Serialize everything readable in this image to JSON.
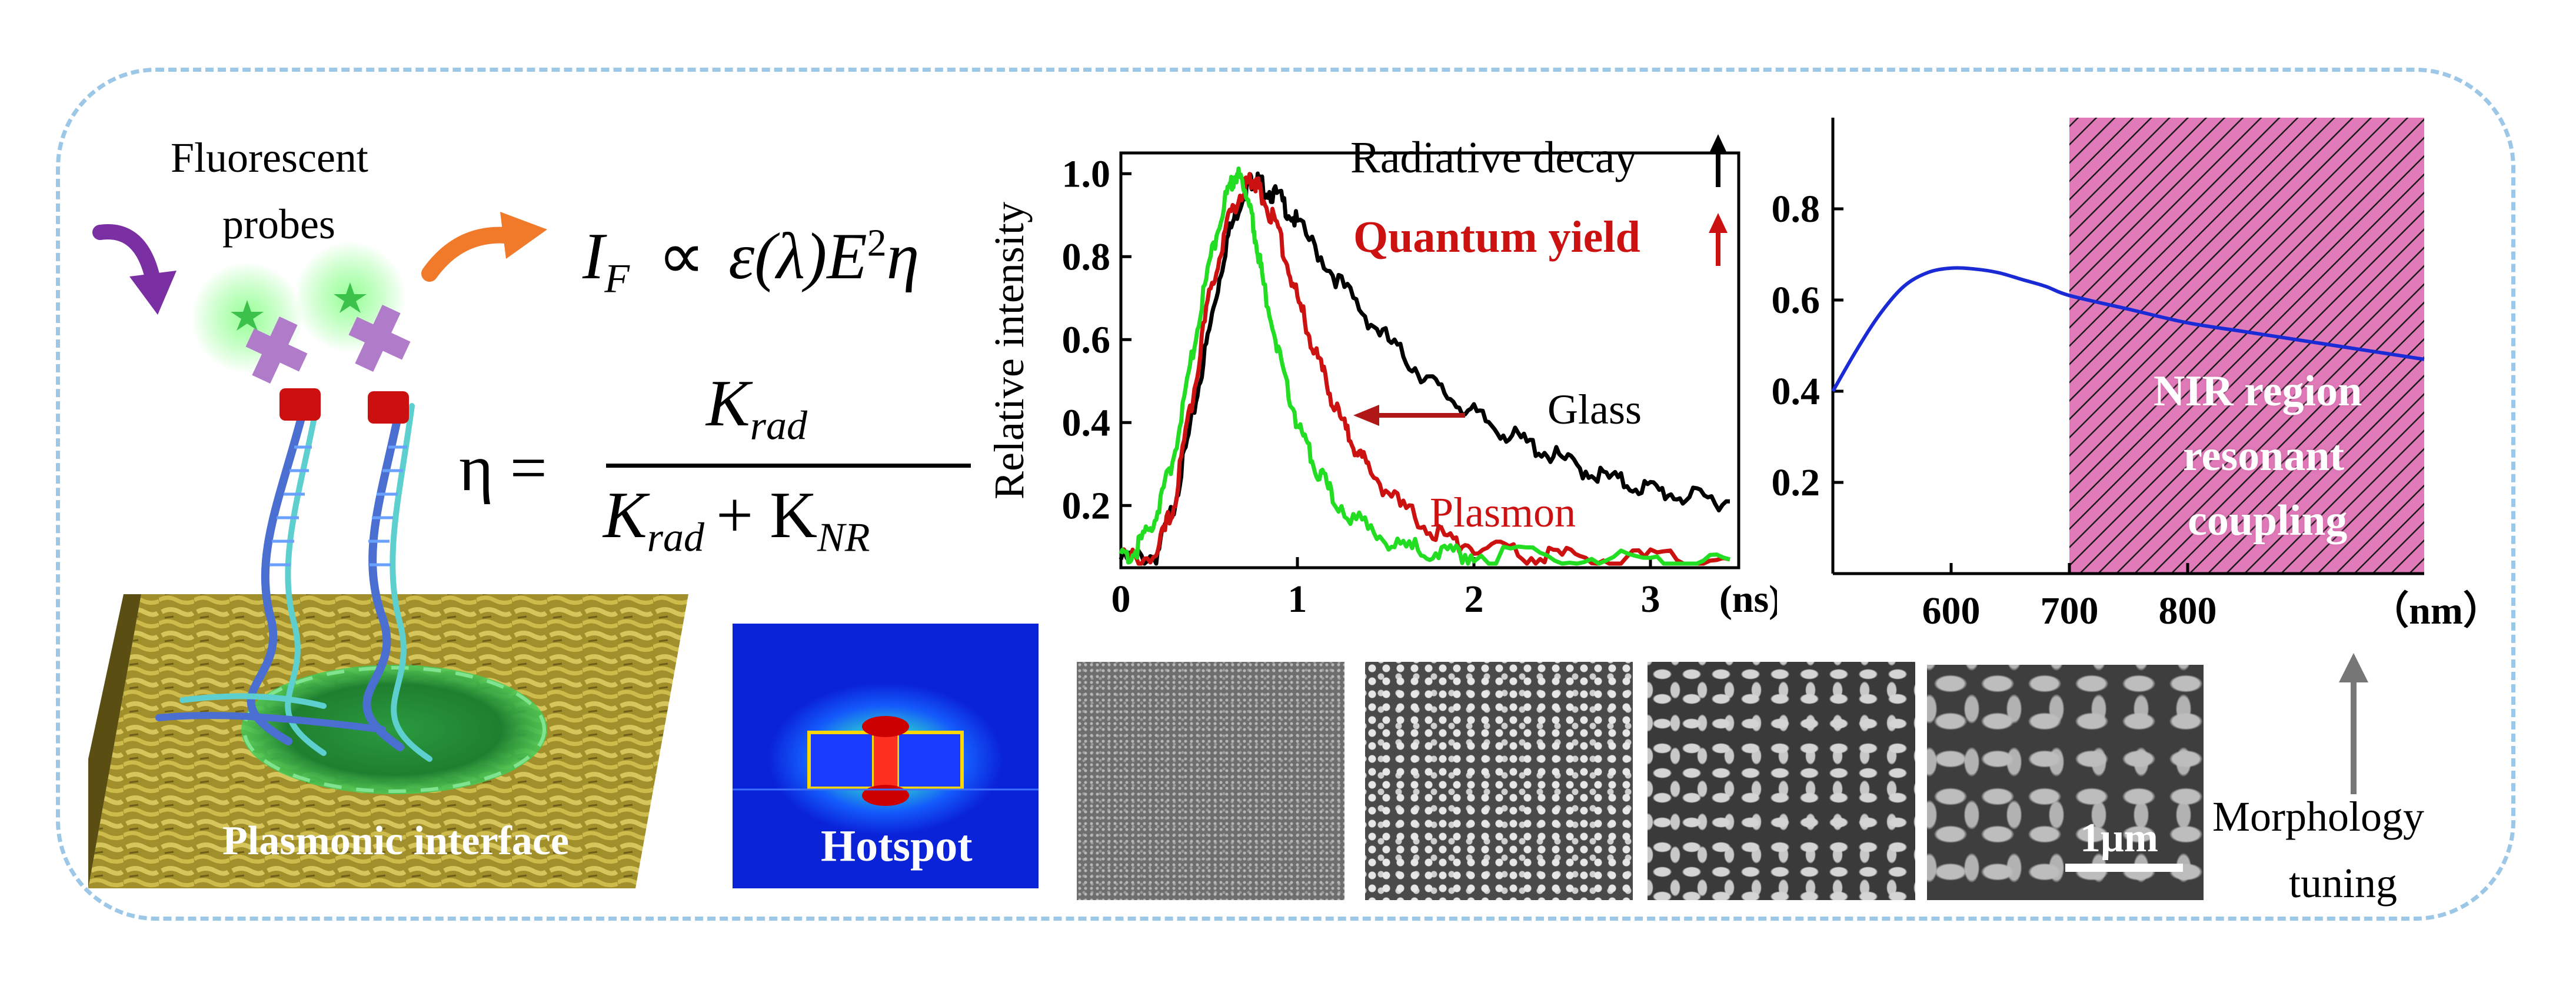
{
  "probe_label_line1": "Fluorescent",
  "probe_label_line2": "probes",
  "plasmonic_label": "Plasmonic interface",
  "hotspot_label": "Hotspot",
  "equation_if": {
    "var": "I",
    "sub": "F",
    "rel": "∝",
    "rhs_a": "ε(λ)E",
    "rhs_sup": "2",
    "rhs_b": "η"
  },
  "equation_eta": {
    "lhs": "η =",
    "num": "K",
    "num_sub": "rad",
    "den_a": "K",
    "den_a_sub": "rad",
    "den_plus": "+ K",
    "den_b_sub": "NR"
  },
  "decay_annotations": {
    "radiative": "Radiative decay",
    "quantum": "Quantum yield",
    "glass": "Glass",
    "plasmon": "Plasmon"
  },
  "spectrum_annotations": {
    "nir_line1": "NIR region",
    "nir_line2": "resonant",
    "nir_line3": "coupling"
  },
  "morphology_line1": "Morphology",
  "morphology_line2": "tuning",
  "scale_bar_label": "1μm",
  "colors": {
    "glass": "#000000",
    "plasmon": "#cc1111",
    "green": "#22dd22",
    "spectrum": "#1a2bd6",
    "nir_fill": "#e07ab8",
    "arrow_red": "#b01818",
    "frame": "#9cc7e6"
  },
  "chart_data": [
    {
      "type": "line",
      "title": "",
      "xlabel": "",
      "ylabel": "Relative intensity",
      "x_unit_label": "(ns)",
      "xlim": [
        0,
        3.5
      ],
      "ylim": [
        0.05,
        1.05
      ],
      "x_ticks": [
        "0",
        "1",
        "2",
        "3"
      ],
      "y_ticks": [
        "0.2",
        "0.4",
        "0.6",
        "0.8",
        "1.0"
      ],
      "x_tick_values": [
        0,
        1,
        2,
        3
      ],
      "y_tick_values": [
        0.2,
        0.4,
        0.6,
        0.8,
        1.0
      ],
      "series": [
        {
          "name": "Glass",
          "color": "#000000",
          "x": [
            0,
            0.2,
            0.3,
            0.4,
            0.5,
            0.6,
            0.7,
            0.75,
            0.8,
            0.9,
            1.0,
            1.2,
            1.4,
            1.6,
            1.8,
            2.0,
            2.2,
            2.4,
            2.6,
            2.8,
            3.0,
            3.2,
            3.45
          ],
          "y": [
            0.07,
            0.08,
            0.2,
            0.4,
            0.62,
            0.84,
            0.96,
            0.99,
            0.97,
            0.94,
            0.88,
            0.76,
            0.65,
            0.56,
            0.48,
            0.42,
            0.37,
            0.33,
            0.29,
            0.26,
            0.24,
            0.22,
            0.21
          ]
        },
        {
          "name": "Plasmon",
          "color": "#cc1111",
          "x": [
            0,
            0.2,
            0.3,
            0.4,
            0.5,
            0.6,
            0.7,
            0.75,
            0.8,
            0.9,
            1.0,
            1.1,
            1.2,
            1.3,
            1.4,
            1.6,
            1.8,
            2.0,
            2.3,
            2.6,
            3.0,
            3.45
          ],
          "y": [
            0.07,
            0.08,
            0.2,
            0.45,
            0.7,
            0.88,
            0.97,
            0.99,
            0.95,
            0.85,
            0.7,
            0.57,
            0.45,
            0.36,
            0.29,
            0.19,
            0.13,
            0.1,
            0.08,
            0.075,
            0.07,
            0.07
          ]
        },
        {
          "name": "",
          "color": "#22dd22",
          "x": [
            0,
            0.1,
            0.2,
            0.3,
            0.4,
            0.5,
            0.6,
            0.65,
            0.7,
            0.75,
            0.8,
            0.9,
            1.0,
            1.1,
            1.2,
            1.4,
            1.6,
            1.8,
            2.0,
            2.5,
            3.0,
            3.45
          ],
          "y": [
            0.07,
            0.1,
            0.18,
            0.32,
            0.55,
            0.78,
            0.95,
            1.0,
            0.97,
            0.88,
            0.75,
            0.55,
            0.4,
            0.3,
            0.22,
            0.14,
            0.1,
            0.085,
            0.08,
            0.075,
            0.07,
            0.07
          ]
        }
      ]
    },
    {
      "type": "line",
      "title": "",
      "xlabel": "",
      "ylabel": "",
      "x_unit_label": "（nm）",
      "xlim": [
        500,
        1000
      ],
      "ylim": [
        0,
        1
      ],
      "x_ticks": [
        "600",
        "700",
        "800"
      ],
      "y_ticks": [
        "0.2",
        "0.4",
        "0.6",
        "0.8"
      ],
      "x_tick_values": [
        600,
        700,
        800
      ],
      "y_tick_values": [
        0.2,
        0.4,
        0.6,
        0.8
      ],
      "shaded_region": {
        "x_from": 700,
        "x_to": 1000,
        "label": "NIR region resonant coupling"
      },
      "series": [
        {
          "name": "",
          "color": "#1a2bd6",
          "x": [
            500,
            520,
            540,
            560,
            580,
            600,
            620,
            640,
            660,
            680,
            700,
            750,
            800,
            850,
            900,
            950,
            1000
          ],
          "y": [
            0.4,
            0.49,
            0.57,
            0.63,
            0.66,
            0.67,
            0.668,
            0.66,
            0.645,
            0.63,
            0.61,
            0.58,
            0.55,
            0.53,
            0.51,
            0.49,
            0.47
          ]
        }
      ]
    }
  ]
}
